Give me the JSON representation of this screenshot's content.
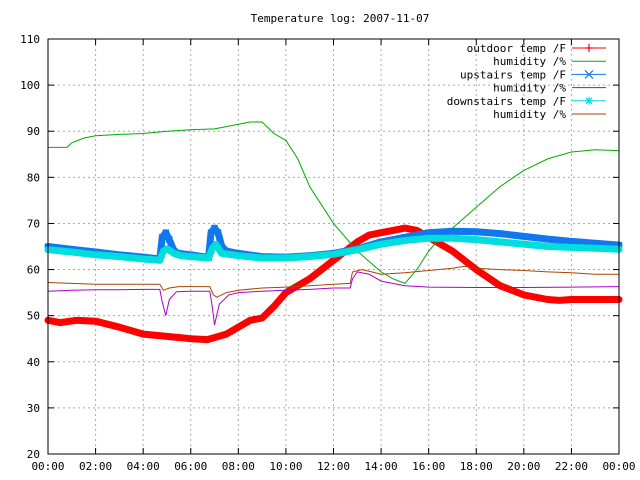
{
  "chart_data": {
    "type": "line",
    "title": "Temperature log: 2007-11-07",
    "xlabel": "",
    "ylabel": "",
    "x_ticks": [
      "00:00",
      "02:00",
      "04:00",
      "06:00",
      "08:00",
      "10:00",
      "12:00",
      "14:00",
      "16:00",
      "18:00",
      "20:00",
      "22:00",
      "00:00"
    ],
    "y_ticks": [
      20,
      30,
      40,
      50,
      60,
      70,
      80,
      90,
      100,
      110
    ],
    "xlim_hours": [
      0,
      24
    ],
    "ylim": [
      20,
      110
    ],
    "grid": true,
    "legend_position": "top-right",
    "series": [
      {
        "name": "outdoor temp /F",
        "color": "#ff0000",
        "marker": "plus",
        "style": "thick-points",
        "points": [
          [
            0,
            49
          ],
          [
            0.5,
            48.5
          ],
          [
            1.2,
            49
          ],
          [
            2,
            48.8
          ],
          [
            3,
            47.5
          ],
          [
            4,
            46
          ],
          [
            5,
            45.5
          ],
          [
            6,
            45
          ],
          [
            6.7,
            44.8
          ],
          [
            7.5,
            46
          ],
          [
            8,
            47.5
          ],
          [
            8.5,
            49
          ],
          [
            9,
            49.5
          ],
          [
            9.5,
            52
          ],
          [
            10,
            55
          ],
          [
            11,
            58
          ],
          [
            12,
            62
          ],
          [
            13,
            66
          ],
          [
            13.5,
            67.5
          ],
          [
            14,
            68
          ],
          [
            14.5,
            68.5
          ],
          [
            15,
            69
          ],
          [
            15.5,
            68.5
          ],
          [
            16,
            67
          ],
          [
            17,
            64
          ],
          [
            18,
            60
          ],
          [
            19,
            56.5
          ],
          [
            20,
            54.5
          ],
          [
            21,
            53.5
          ],
          [
            21.5,
            53.3
          ],
          [
            22,
            53.5
          ],
          [
            23,
            53.5
          ],
          [
            24,
            53.5
          ]
        ]
      },
      {
        "name": "humidity /%",
        "color": "#00aa00",
        "marker": "none",
        "style": "thin-line",
        "points": [
          [
            0,
            86.5
          ],
          [
            0.8,
            86.5
          ],
          [
            1,
            87.5
          ],
          [
            1.5,
            88.5
          ],
          [
            2,
            89
          ],
          [
            3,
            89.3
          ],
          [
            4,
            89.5
          ],
          [
            5,
            90
          ],
          [
            6,
            90.3
          ],
          [
            7,
            90.5
          ],
          [
            8,
            91.5
          ],
          [
            8.5,
            92
          ],
          [
            9,
            92
          ],
          [
            9.2,
            91
          ],
          [
            9.5,
            89.5
          ],
          [
            10,
            88
          ],
          [
            10.5,
            84
          ],
          [
            11,
            78
          ],
          [
            12,
            70
          ],
          [
            13,
            64
          ],
          [
            14,
            59.5
          ],
          [
            14.5,
            58
          ],
          [
            15,
            57
          ],
          [
            15.5,
            60
          ],
          [
            16,
            64
          ],
          [
            16.5,
            67
          ],
          [
            17,
            69
          ],
          [
            18,
            73.5
          ],
          [
            19,
            78
          ],
          [
            20,
            81.5
          ],
          [
            21,
            84
          ],
          [
            22,
            85.5
          ],
          [
            23,
            86
          ],
          [
            24,
            85.8
          ]
        ]
      },
      {
        "name": "upstairs temp /F",
        "color": "#1177ee",
        "marker": "x",
        "style": "thick-points",
        "points": [
          [
            0,
            65
          ],
          [
            1,
            64.4
          ],
          [
            2,
            63.8
          ],
          [
            3,
            63.2
          ],
          [
            4,
            62.7
          ],
          [
            4.7,
            62.3
          ],
          [
            4.8,
            67
          ],
          [
            4.95,
            68
          ],
          [
            5.1,
            66.5
          ],
          [
            5.3,
            64
          ],
          [
            5.5,
            63.5
          ],
          [
            6,
            63.2
          ],
          [
            6.5,
            62.8
          ],
          [
            6.75,
            62.6
          ],
          [
            6.85,
            68
          ],
          [
            7,
            69
          ],
          [
            7.15,
            68
          ],
          [
            7.3,
            65
          ],
          [
            7.5,
            64
          ],
          [
            8,
            63.5
          ],
          [
            9,
            62.8
          ],
          [
            10,
            62.7
          ],
          [
            11,
            63
          ],
          [
            12,
            63.5
          ],
          [
            13,
            64.5
          ],
          [
            14,
            66
          ],
          [
            15,
            67
          ],
          [
            16,
            68
          ],
          [
            17,
            68.3
          ],
          [
            18,
            68.2
          ],
          [
            19,
            67.8
          ],
          [
            20,
            67.2
          ],
          [
            21,
            66.6
          ],
          [
            22,
            66.1
          ],
          [
            23,
            65.7
          ],
          [
            24,
            65.3
          ]
        ]
      },
      {
        "name": "humidity /%",
        "color": "#aa00cc",
        "marker": "none",
        "style": "thin-line",
        "points": [
          [
            0,
            55.3
          ],
          [
            1,
            55.5
          ],
          [
            2,
            55.6
          ],
          [
            3,
            55.6
          ],
          [
            4,
            55.7
          ],
          [
            4.7,
            55.7
          ],
          [
            4.8,
            53
          ],
          [
            4.95,
            50
          ],
          [
            5.1,
            53.5
          ],
          [
            5.4,
            55.2
          ],
          [
            6,
            55.3
          ],
          [
            6.8,
            55.3
          ],
          [
            6.9,
            52
          ],
          [
            7,
            48
          ],
          [
            7.2,
            52.5
          ],
          [
            7.6,
            54.5
          ],
          [
            8,
            55
          ],
          [
            9,
            55.3
          ],
          [
            10,
            55.5
          ],
          [
            11,
            55.7
          ],
          [
            12,
            56
          ],
          [
            12.7,
            56
          ],
          [
            12.8,
            58
          ],
          [
            13,
            59.5
          ],
          [
            13.5,
            59
          ],
          [
            14,
            57.5
          ],
          [
            15,
            56.5
          ],
          [
            16,
            56.2
          ],
          [
            18,
            56.1
          ],
          [
            20,
            56.1
          ],
          [
            22,
            56.2
          ],
          [
            24,
            56.3
          ]
        ]
      },
      {
        "name": "downstairs temp /F",
        "color": "#00dddd",
        "marker": "star",
        "style": "thick-points",
        "points": [
          [
            0,
            64.3
          ],
          [
            1,
            63.8
          ],
          [
            2,
            63.2
          ],
          [
            3,
            62.8
          ],
          [
            4,
            62.3
          ],
          [
            4.7,
            62
          ],
          [
            4.85,
            64
          ],
          [
            5,
            64.5
          ],
          [
            5.3,
            63.5
          ],
          [
            5.6,
            63
          ],
          [
            6,
            62.8
          ],
          [
            6.75,
            62.5
          ],
          [
            6.9,
            64.5
          ],
          [
            7.05,
            65.5
          ],
          [
            7.3,
            63.5
          ],
          [
            7.6,
            63.3
          ],
          [
            8,
            63
          ],
          [
            9,
            62.5
          ],
          [
            10,
            62.5
          ],
          [
            11,
            62.8
          ],
          [
            12,
            63.3
          ],
          [
            13,
            64.3
          ],
          [
            14,
            65.5
          ],
          [
            15,
            66.3
          ],
          [
            16,
            66.8
          ],
          [
            17,
            66.8
          ],
          [
            18,
            66.5
          ],
          [
            19,
            66
          ],
          [
            20,
            65.5
          ],
          [
            21,
            65
          ],
          [
            22,
            64.8
          ],
          [
            23,
            64.6
          ],
          [
            24,
            64.4
          ]
        ]
      },
      {
        "name": "humidity /%",
        "color": "#aa4400",
        "marker": "none",
        "style": "thin-line",
        "points": [
          [
            0,
            57.2
          ],
          [
            1,
            57
          ],
          [
            2,
            56.8
          ],
          [
            3,
            56.8
          ],
          [
            4,
            56.8
          ],
          [
            4.7,
            56.8
          ],
          [
            4.85,
            55.5
          ],
          [
            5.1,
            56
          ],
          [
            5.5,
            56.3
          ],
          [
            6,
            56.3
          ],
          [
            6.8,
            56.3
          ],
          [
            6.95,
            54.5
          ],
          [
            7.1,
            54
          ],
          [
            7.5,
            55
          ],
          [
            8,
            55.5
          ],
          [
            9,
            56
          ],
          [
            10,
            56.2
          ],
          [
            11,
            56.5
          ],
          [
            12,
            56.8
          ],
          [
            12.7,
            57
          ],
          [
            12.8,
            59.5
          ],
          [
            13.2,
            60
          ],
          [
            13.6,
            59.5
          ],
          [
            14,
            59
          ],
          [
            15,
            59.3
          ],
          [
            16,
            59.8
          ],
          [
            17,
            60.3
          ],
          [
            17.5,
            60.7
          ],
          [
            18,
            60.3
          ],
          [
            19,
            60
          ],
          [
            20,
            59.8
          ],
          [
            21,
            59.5
          ],
          [
            22,
            59.3
          ],
          [
            23,
            59
          ],
          [
            24,
            59
          ]
        ]
      }
    ]
  }
}
